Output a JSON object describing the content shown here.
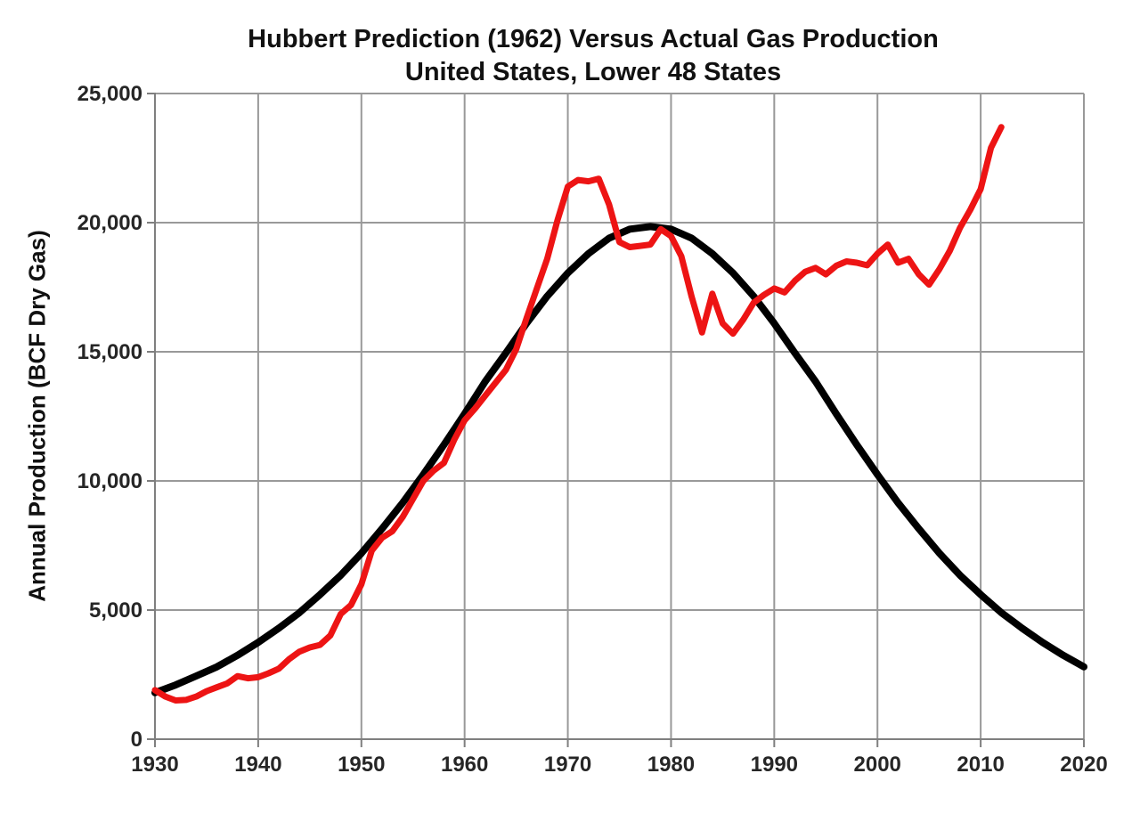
{
  "chart": {
    "title_line1": "Hubbert Prediction (1962) Versus Actual Gas Production",
    "title_line2": "United States, Lower 48 States",
    "y_axis_title": "Annual Production (BCF Dry Gas)"
  },
  "chart_data": {
    "type": "line",
    "title": "Hubbert Prediction (1962) Versus Actual Gas Production",
    "subtitle": "United States, Lower 48 States",
    "xlabel": "",
    "ylabel": "Annual Production (BCF Dry Gas)",
    "x_range": [
      1930,
      2020
    ],
    "y_range": [
      0,
      25000
    ],
    "x_ticks": [
      1930,
      1940,
      1950,
      1960,
      1970,
      1980,
      1990,
      2000,
      2010,
      2020
    ],
    "x_tick_labels": [
      "1930",
      "1940",
      "1950",
      "1960",
      "1970",
      "1980",
      "1990",
      "2000",
      "2010",
      "2020"
    ],
    "y_ticks": [
      0,
      5000,
      10000,
      15000,
      20000,
      25000
    ],
    "y_tick_labels": [
      "0",
      "5,000",
      "10,000",
      "15,000",
      "20,000",
      "25,000"
    ],
    "grid": true,
    "legend_position": "none",
    "colors": {
      "hubbert": "#000000",
      "actual": "#ED1414",
      "grid": "#999999",
      "axis": "#7f7f7f",
      "text": "#262626"
    },
    "series": [
      {
        "name": "Hubbert Prediction (1962)",
        "color_key": "hubbert",
        "stroke_width": 8,
        "x_start": 1930,
        "x_step": 2,
        "values": [
          1800,
          2100,
          2450,
          2800,
          3250,
          3750,
          4300,
          4900,
          5600,
          6350,
          7200,
          8150,
          9150,
          10250,
          11400,
          12600,
          13850,
          14950,
          16100,
          17150,
          18050,
          18800,
          19400,
          19750,
          19850,
          19750,
          19400,
          18800,
          18050,
          17150,
          16100,
          14950,
          13850,
          12600,
          11400,
          10250,
          9150,
          8150,
          7200,
          6350,
          5600,
          4900,
          4300,
          3750,
          3250,
          2800
        ]
      },
      {
        "name": "Actual Gas Production",
        "color_key": "actual",
        "stroke_width": 7,
        "x_start": 1930,
        "x_step": 1,
        "values": [
          1900,
          1650,
          1500,
          1520,
          1650,
          1860,
          2010,
          2160,
          2440,
          2360,
          2400,
          2550,
          2730,
          3100,
          3390,
          3550,
          3650,
          4020,
          4850,
          5200,
          6000,
          7300,
          7800,
          8050,
          8600,
          9300,
          10000,
          10400,
          10700,
          11600,
          12350,
          12800,
          13300,
          13800,
          14300,
          15100,
          16300,
          17450,
          18600,
          20100,
          21400,
          21650,
          21600,
          21700,
          20700,
          19250,
          19050,
          19100,
          19150,
          19750,
          19480,
          18700,
          17130,
          15750,
          17250,
          16100,
          15700,
          16250,
          16900,
          17200,
          17450,
          17300,
          17750,
          18100,
          18250,
          18000,
          18330,
          18500,
          18450,
          18350,
          18800,
          19150,
          18450,
          18600,
          18000,
          17600,
          18200,
          18900,
          19800,
          20500,
          21300,
          22900,
          23700
        ]
      }
    ]
  }
}
